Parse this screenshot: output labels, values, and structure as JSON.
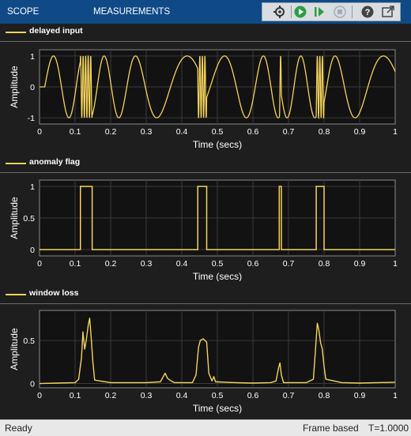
{
  "toolbar": {
    "tabs": [
      "SCOPE",
      "MEASUREMENTS"
    ],
    "buttons": [
      "gear-pin-icon",
      "run-icon",
      "step-forward-icon",
      "stop-icon",
      "help-icon",
      "undock-icon"
    ]
  },
  "colors": {
    "trace": "#f5d35c",
    "axes_bg": "#121212",
    "figure_bg": "#1e1e1e",
    "header": "#0f4a86"
  },
  "plots": [
    {
      "legend": "delayed input",
      "ylabel": "Amplitude",
      "xlabel": "Time (secs)"
    },
    {
      "legend": "anomaly flag",
      "ylabel": "Amplitude",
      "xlabel": "Time (secs)"
    },
    {
      "legend": "window loss",
      "ylabel": "Amplitude",
      "xlabel": "Time (secs)"
    }
  ],
  "chart_data": [
    {
      "type": "line",
      "series": [
        {
          "name": "delayed input"
        }
      ],
      "x_ticks": [
        "0",
        "0.1",
        "0.2",
        "0.3",
        "0.4",
        "0.5",
        "0.6",
        "0.7",
        "0.8",
        "0.9",
        "1"
      ],
      "y_ticks": [
        "1",
        "0",
        "-1"
      ],
      "xlim": [
        0,
        1
      ],
      "ylim": [
        -1.2,
        1.2
      ],
      "signal": {
        "base_freq": 9,
        "bursts": [
          {
            "x0": 0.115,
            "x1": 0.148
          },
          {
            "x0": 0.445,
            "x1": 0.47
          },
          {
            "x0": 0.675,
            "x1": 0.68
          },
          {
            "x0": 0.778,
            "x1": 0.8
          }
        ]
      }
    },
    {
      "type": "line",
      "series": [
        {
          "name": "anomaly flag"
        }
      ],
      "x_ticks": [
        "0",
        "0.1",
        "0.2",
        "0.3",
        "0.4",
        "0.5",
        "0.6",
        "0.7",
        "0.8",
        "0.9",
        "1"
      ],
      "y_ticks": [
        "1",
        "0.5",
        "0"
      ],
      "xlim": [
        0,
        1
      ],
      "ylim": [
        -0.1,
        1.1
      ],
      "pulses": [
        [
          0.115,
          0.148
        ],
        [
          0.445,
          0.47
        ],
        [
          0.674,
          0.68
        ],
        [
          0.778,
          0.8
        ]
      ]
    },
    {
      "type": "line",
      "series": [
        {
          "name": "window loss"
        }
      ],
      "x_ticks": [
        "0",
        "0.1",
        "0.2",
        "0.3",
        "0.4",
        "0.5",
        "0.6",
        "0.7",
        "0.8",
        "0.9",
        "1"
      ],
      "y_ticks": [
        "0.5",
        "0"
      ],
      "xlim": [
        0,
        1
      ],
      "ylim": [
        -0.05,
        0.85
      ],
      "points": [
        [
          0,
          0.0
        ],
        [
          0.05,
          0.005
        ],
        [
          0.1,
          0.01
        ],
        [
          0.11,
          0.05
        ],
        [
          0.118,
          0.3
        ],
        [
          0.122,
          0.6
        ],
        [
          0.127,
          0.4
        ],
        [
          0.132,
          0.52
        ],
        [
          0.137,
          0.68
        ],
        [
          0.141,
          0.76
        ],
        [
          0.145,
          0.55
        ],
        [
          0.15,
          0.25
        ],
        [
          0.155,
          0.04
        ],
        [
          0.2,
          0.01
        ],
        [
          0.3,
          0.01
        ],
        [
          0.34,
          0.02
        ],
        [
          0.353,
          0.12
        ],
        [
          0.36,
          0.06
        ],
        [
          0.37,
          0.03
        ],
        [
          0.38,
          0.01
        ],
        [
          0.43,
          0.01
        ],
        [
          0.44,
          0.1
        ],
        [
          0.447,
          0.42
        ],
        [
          0.452,
          0.5
        ],
        [
          0.46,
          0.52
        ],
        [
          0.47,
          0.48
        ],
        [
          0.476,
          0.12
        ],
        [
          0.485,
          0.03
        ],
        [
          0.49,
          0.08
        ],
        [
          0.495,
          0.02
        ],
        [
          0.55,
          0.01
        ],
        [
          0.6,
          0.005
        ],
        [
          0.65,
          0.01
        ],
        [
          0.665,
          0.03
        ],
        [
          0.672,
          0.18
        ],
        [
          0.676,
          0.24
        ],
        [
          0.68,
          0.1
        ],
        [
          0.686,
          0.01
        ],
        [
          0.75,
          0.01
        ],
        [
          0.77,
          0.05
        ],
        [
          0.776,
          0.4
        ],
        [
          0.781,
          0.7
        ],
        [
          0.785,
          0.63
        ],
        [
          0.79,
          0.48
        ],
        [
          0.795,
          0.4
        ],
        [
          0.8,
          0.2
        ],
        [
          0.805,
          0.05
        ],
        [
          0.85,
          0.01
        ],
        [
          0.9,
          0.005
        ],
        [
          0.95,
          0.01
        ],
        [
          1.0,
          0.015
        ]
      ]
    }
  ],
  "status": {
    "left": "Ready",
    "mode": "Frame based",
    "time": "T=1.0000"
  }
}
